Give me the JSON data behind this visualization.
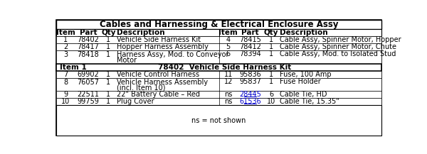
{
  "title": "Cables and Harnessing & Electrical Enclosure Assy",
  "subheader_item": "Item 1",
  "subheader_mid": "78402  Vehicle Side Harness Kit",
  "footer": "ns = not shown",
  "col_headers": [
    "Item",
    "Part",
    "Qty",
    "Description",
    "Item",
    "Part",
    "Qty",
    "Description"
  ],
  "top_rows": [
    [
      "1",
      "78402",
      "1",
      "Vehicle Side Harness Kit",
      "4",
      "78415",
      "1",
      "Cable Assy, Spinner Motor, Hopper"
    ],
    [
      "2",
      "78417",
      "1",
      "Hopper Harness Assembly",
      "5",
      "78412",
      "1",
      "Cable Assy, Spinner Motor, Chute"
    ],
    [
      "3",
      "78418",
      "1",
      "Harness Assy, Mod. to Conveyor\nMotor",
      "6",
      "78394",
      "1",
      "Cable Assy, Mod. to Isolated Stud"
    ]
  ],
  "bottom_rows": [
    [
      "7",
      "69902",
      "1",
      "Vehicle Control Harness",
      "11",
      "95836",
      "1",
      "Fuse, 100 Amp"
    ],
    [
      "8",
      "76057",
      "1",
      "Vehicle Harness Assembly\n(incl. Item 10)",
      "12",
      "95837",
      "1",
      "Fuse Holder"
    ],
    [
      "9",
      "22511",
      "1",
      "22\" Battery Cable – Red",
      "ns",
      "28445",
      "6",
      "Cable Tie, HD"
    ],
    [
      "10",
      "99759",
      "1",
      "Plug Cover",
      "ns",
      "61536",
      "10",
      "Cable Tie, 15.35\""
    ]
  ],
  "link_parts": [
    "28445",
    "61536"
  ],
  "bg_color": "#ffffff",
  "text_color": "#000000",
  "link_color": "#0000cc",
  "title_fontsize": 8.5,
  "header_fontsize": 7.5,
  "body_fontsize": 7.0
}
